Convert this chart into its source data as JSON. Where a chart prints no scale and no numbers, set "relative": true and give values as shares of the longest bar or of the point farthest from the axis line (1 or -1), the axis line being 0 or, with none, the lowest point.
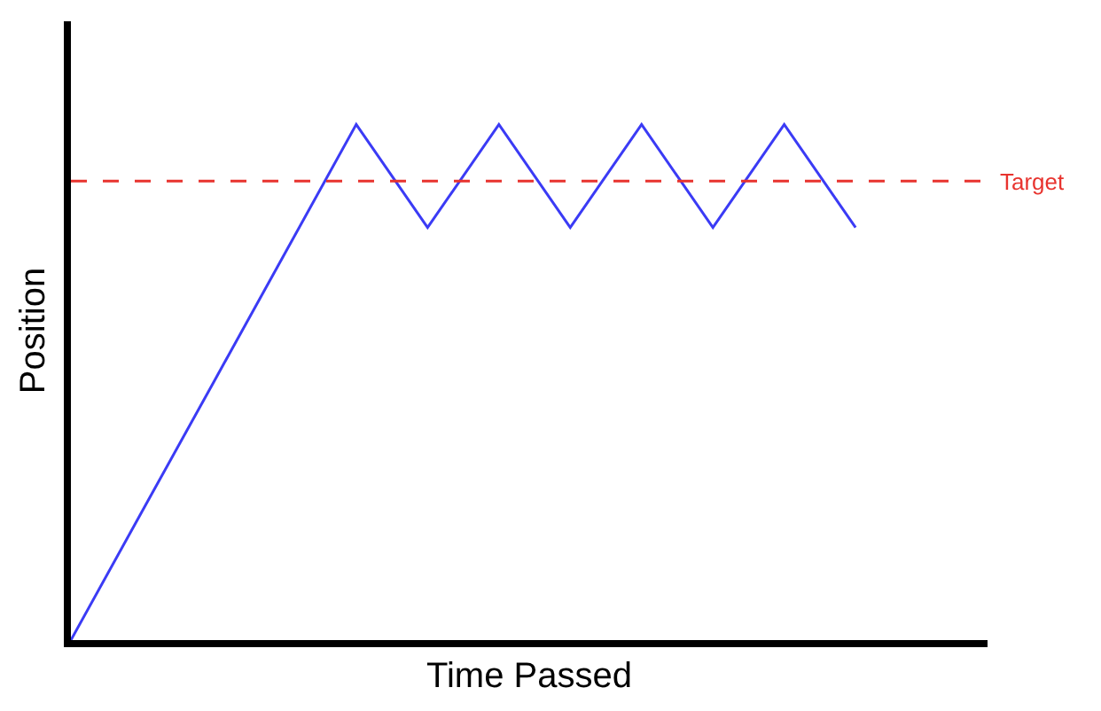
{
  "chart_data": {
    "type": "line",
    "relative": true,
    "xlabel": "Time Passed",
    "ylabel": "Position",
    "categories": [
      null,
      null,
      null,
      null,
      null,
      null,
      null,
      null,
      null,
      null,
      null,
      null
    ],
    "series": [
      {
        "color": "#3b3bf5",
        "values": [
          0,
          0.25,
          0.5,
          0.75,
          1,
          0.8,
          1,
          0.8,
          1,
          0.8,
          1,
          0.8
        ]
      }
    ],
    "ref_lines": [
      {
        "axis": "y",
        "value": 0.89,
        "label": "Target",
        "color": "#e8332e",
        "line_style": "dashed"
      }
    ],
    "marker": "none",
    "line_style": "solid"
  }
}
